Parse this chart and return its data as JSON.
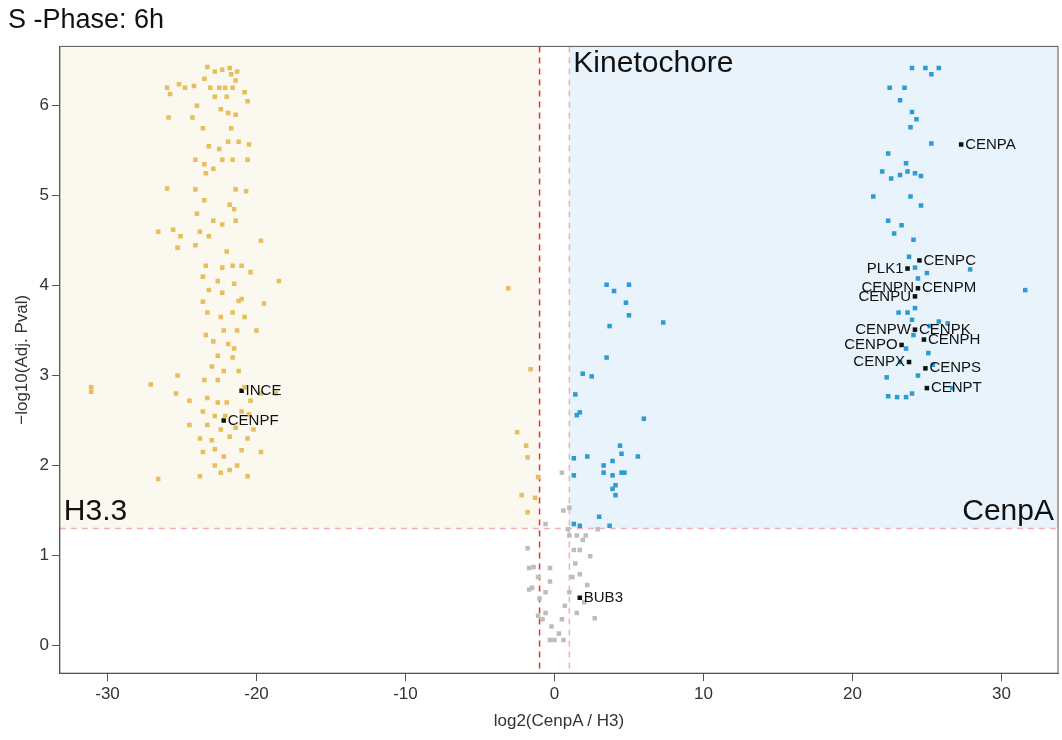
{
  "chart_data": {
    "type": "scatter",
    "title": "S -Phase: 6h",
    "xlabel": "log2(CenpA / H3)",
    "ylabel": "−log10(Adj. Pval)",
    "xlim": [
      -33.2,
      33.8
    ],
    "ylim": [
      -0.31,
      6.66
    ],
    "xticks": [
      -30,
      -20,
      -10,
      0,
      10,
      20,
      30
    ],
    "yticks": [
      0,
      1,
      2,
      3,
      4,
      5,
      6
    ],
    "grid": false,
    "legend": false,
    "marker": "square",
    "series": [
      {
        "color": "#e8bd5c",
        "x": [
          -23.3,
          -22.8,
          -22.3,
          -21.8,
          -21.7,
          -21.3,
          -23.5,
          -21.4,
          -26.0,
          -24.8,
          -25.2,
          -24.2,
          -23.1,
          -22.5,
          -22.1,
          -21.6,
          -22.8,
          -22.0,
          -20.8,
          -20.6,
          -25.8,
          -24.0,
          -22.4,
          -21.9,
          -21.4,
          -25.9,
          -24.3,
          -23.6,
          -21.7,
          -21.9,
          -21.2,
          -20.5,
          -23.2,
          -22.5,
          -24.1,
          -23.5,
          -22.3,
          -21.6,
          -20.6,
          -23.4,
          -22.9,
          -26.0,
          -24.1,
          -21.4,
          -20.7,
          -23.5,
          -21.8,
          -21.5,
          -24.0,
          -22.9,
          -22.3,
          -21.4,
          -26.6,
          -25.6,
          -25.1,
          -23.8,
          -23.2,
          -25.3,
          -24.1,
          -19.7,
          -22.0,
          -23.4,
          -22.3,
          -21.6,
          -21.0,
          -20.4,
          -23.6,
          -22.6,
          -21.5,
          -18.5,
          -23.2,
          -22.3,
          -21.0,
          -23.6,
          -21.2,
          -19.5,
          -23.3,
          -22.4,
          -21.6,
          -20.8,
          -23.4,
          -22.2,
          -21.3,
          -20.0,
          -22.9,
          -21.9,
          -21.5,
          -22.6,
          -21.6,
          -23.0,
          -22.2,
          -21.2,
          -25.3,
          -23.5,
          -22.6,
          -27.1,
          -25.4,
          -20.8,
          -19.7,
          -18.7,
          -24.5,
          -23.3,
          -22.6,
          -22.0,
          -20.4,
          -23.6,
          -22.8,
          -22.1,
          -21.0,
          -20.5,
          -24.5,
          -23.3,
          -22.4,
          -21.4,
          -20.2,
          -23.8,
          -23.0,
          -21.8,
          -20.6,
          -23.6,
          -22.8,
          -22.2,
          -21.0,
          -19.7,
          -22.8,
          -21.8,
          -21.3,
          -26.6,
          -23.8,
          -22.4,
          -20.6,
          -31.1,
          -31.1,
          -3.1,
          -1.6,
          -2.5,
          -1.9,
          -1.8,
          -1.1,
          -2.2,
          -1.3,
          -1.8
        ],
        "values": [
          6.43,
          6.38,
          6.4,
          6.42,
          6.35,
          6.38,
          6.3,
          6.28,
          6.2,
          6.2,
          6.24,
          6.22,
          6.2,
          6.2,
          6.2,
          6.2,
          6.1,
          6.1,
          6.15,
          6.05,
          6.13,
          6.0,
          5.96,
          5.92,
          5.9,
          5.87,
          5.87,
          5.75,
          5.75,
          5.6,
          5.6,
          5.57,
          5.55,
          5.52,
          5.4,
          5.35,
          5.4,
          5.4,
          5.4,
          5.25,
          5.3,
          5.08,
          5.07,
          5.07,
          5.05,
          4.95,
          4.9,
          4.85,
          4.8,
          4.72,
          4.68,
          4.72,
          4.6,
          4.62,
          4.55,
          4.6,
          4.55,
          4.42,
          4.45,
          4.5,
          4.38,
          4.22,
          4.2,
          4.22,
          4.22,
          4.15,
          4.1,
          4.05,
          4.02,
          4.05,
          3.95,
          3.92,
          3.85,
          3.82,
          3.83,
          3.8,
          3.7,
          3.65,
          3.7,
          3.65,
          3.45,
          3.5,
          3.5,
          3.5,
          3.38,
          3.35,
          3.3,
          3.22,
          3.2,
          3.1,
          3.05,
          3.05,
          3.0,
          2.95,
          2.95,
          2.9,
          2.8,
          2.87,
          2.8,
          2.8,
          2.72,
          2.75,
          2.7,
          2.7,
          2.72,
          2.6,
          2.55,
          2.55,
          2.6,
          2.57,
          2.45,
          2.45,
          2.4,
          2.42,
          2.4,
          2.3,
          2.28,
          2.32,
          2.3,
          2.15,
          2.18,
          2.1,
          2.17,
          2.15,
          2.0,
          1.95,
          2.0,
          1.85,
          1.88,
          1.92,
          1.88,
          2.87,
          2.82,
          3.97,
          3.07,
          2.37,
          2.22,
          2.09,
          1.87,
          1.67,
          1.64,
          1.48
        ]
      },
      {
        "color": "#2f9bd0",
        "x": [
          3.5,
          4.0,
          5.0,
          4.8,
          5.0,
          3.7,
          7.3,
          3.5,
          1.9,
          2.5,
          1.4,
          1.7,
          1.5,
          6.0,
          4.4,
          4.5,
          5.6,
          2.2,
          1.3,
          3.3,
          3.9,
          3.3,
          3.9,
          4.5,
          4.7,
          1.3,
          4.1,
          3.9,
          4.1,
          3.0,
          1.3,
          1.7,
          3.7,
          24.0,
          24.9,
          25.8,
          25.3,
          22.5,
          23.5,
          23.2,
          24.0,
          24.3,
          23.9,
          25.3,
          22.4,
          23.6,
          22.0,
          23.2,
          23.7,
          24.2,
          24.6,
          22.6,
          21.4,
          23.9,
          24.6,
          22.4,
          23.3,
          22.8,
          24.1,
          23.8,
          24.2,
          25.0,
          27.9,
          24.4,
          31.6,
          23.1,
          23.7,
          24.0,
          24.2,
          25.2,
          25.8,
          26.4,
          24.1,
          23.6,
          25.1,
          23.2,
          25.4,
          24.4,
          22.3,
          26.7,
          23.0,
          23.6,
          22.4,
          24.0
        ],
        "values": [
          4.01,
          3.94,
          4.01,
          3.81,
          3.67,
          3.55,
          3.59,
          3.2,
          3.02,
          2.99,
          2.79,
          2.59,
          2.56,
          2.52,
          2.22,
          2.13,
          2.1,
          2.1,
          2.08,
          2.0,
          2.05,
          1.92,
          1.89,
          1.92,
          1.92,
          1.89,
          1.78,
          1.74,
          1.67,
          1.43,
          1.35,
          1.33,
          1.33,
          6.42,
          6.42,
          6.42,
          6.35,
          6.2,
          6.2,
          6.06,
          5.93,
          5.85,
          5.76,
          5.58,
          5.47,
          5.36,
          5.27,
          5.23,
          5.27,
          5.25,
          5.22,
          5.19,
          4.99,
          4.99,
          4.89,
          4.72,
          4.67,
          4.58,
          4.51,
          4.32,
          4.2,
          4.14,
          4.18,
          4.08,
          3.95,
          3.7,
          3.7,
          3.62,
          3.75,
          3.55,
          3.6,
          3.58,
          3.45,
          3.3,
          3.25,
          3.15,
          3.12,
          3.0,
          2.98,
          2.86,
          2.76,
          2.76,
          2.77,
          2.8
        ]
      },
      {
        "color": "#bdbdbd",
        "x": [
          0.5,
          0.6,
          1.0,
          -0.6,
          2.9,
          0.9,
          -1.8,
          -1.7,
          -1.4,
          -0.3,
          -1.1,
          -0.3,
          -1.5,
          -1.0,
          -0.6,
          -0.2,
          0.0,
          0.3,
          0.5,
          0.7,
          1.0,
          1.2,
          1.4,
          1.7,
          1.9,
          2.1,
          2.4,
          2.2,
          2.7,
          1.0,
          1.5,
          1.3,
          1.7,
          2.0,
          1.5,
          -0.6,
          -0.8,
          0.6,
          -0.3,
          -1.1,
          -1.7
        ],
        "values": [
          1.92,
          1.5,
          1.53,
          1.35,
          1.29,
          1.29,
          1.08,
          0.86,
          0.87,
          0.86,
          0.76,
          0.71,
          0.64,
          0.52,
          0.36,
          0.21,
          0.06,
          0.13,
          0.29,
          0.44,
          0.59,
          0.76,
          0.91,
          1.06,
          1.17,
          1.22,
          0.99,
          0.67,
          0.3,
          1.22,
          1.22,
          1.06,
          0.79,
          0.48,
          0.36,
          0.59,
          0.29,
          0.06,
          0.06,
          0.33,
          0.62
        ]
      },
      {
        "color": "#111111",
        "x": [
          27.3,
          24.5,
          23.7,
          24.4,
          24.2,
          24.2,
          24.8,
          23.3,
          23.8,
          24.9,
          25.0,
          -21.0,
          -22.2,
          1.7
        ],
        "values": [
          5.57,
          4.28,
          4.19,
          3.97,
          3.88,
          3.51,
          3.4,
          3.34,
          3.15,
          3.08,
          2.86,
          2.83,
          2.5,
          0.53
        ]
      }
    ],
    "ref_lines": [
      {
        "axis": "x",
        "value": -1,
        "color": "#e8312f",
        "line_style": "dashed"
      },
      {
        "axis": "x",
        "value": 1,
        "color": "#f4b0b0",
        "line_style": "dashed"
      },
      {
        "axis": "y",
        "value": 1.3,
        "color": "#f4b0b0",
        "line_style": "dashed"
      }
    ],
    "bands": [
      {
        "axis": "x",
        "from": -33.2,
        "to": -1,
        "label": "H3.3",
        "color": "#fbf8ef"
      },
      {
        "axis": "x",
        "from": 1,
        "to": 33.8,
        "label": "CenpA",
        "color": "#e8f3fb"
      }
    ],
    "annotations": [
      "Kinetochore",
      {
        "text": "CENPA",
        "x": 27.3,
        "y": 5.57
      },
      {
        "text": "CENPC",
        "x": 24.5,
        "y": 4.28
      },
      {
        "text": "PLK1",
        "x": 23.7,
        "y": 4.19
      },
      {
        "text": "CENPM",
        "x": 24.4,
        "y": 3.97
      },
      {
        "text": "CENPN",
        "x": 24.4,
        "y": 3.97
      },
      {
        "text": "CENPU",
        "x": 24.2,
        "y": 3.88
      },
      {
        "text": "CENPK",
        "x": 24.2,
        "y": 3.51
      },
      {
        "text": "CENPW",
        "x": 24.2,
        "y": 3.51
      },
      {
        "text": "CENPH",
        "x": 24.8,
        "y": 3.4
      },
      {
        "text": "CENPO",
        "x": 23.3,
        "y": 3.34
      },
      {
        "text": "CENPS",
        "x": 24.9,
        "y": 3.08
      },
      {
        "text": "CENPX",
        "x": 23.8,
        "y": 3.15
      },
      {
        "text": "CENPT",
        "x": 25.0,
        "y": 2.86
      },
      {
        "text": "INCE",
        "x": -21.0,
        "y": 2.83
      },
      {
        "text": "CENPF",
        "x": -22.2,
        "y": 2.5
      },
      {
        "text": "BUB3",
        "x": 1.7,
        "y": 0.53
      }
    ]
  }
}
